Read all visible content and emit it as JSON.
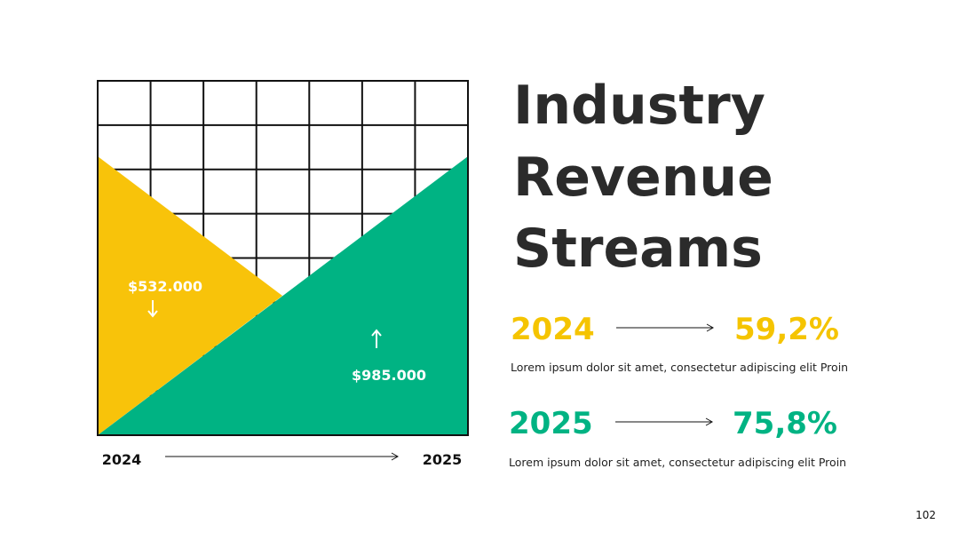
{
  "visual": {
    "left_value": "$532.000",
    "right_value": "$985.000",
    "start_label": "2024",
    "end_label": "2025"
  },
  "title": {
    "lines": [
      "Industry",
      "Revenue",
      "Streams"
    ]
  },
  "stats": [
    {
      "year": "2024",
      "percent": "59,2%",
      "description": "Lorem ipsum dolor sit amet, consectetur adipiscing elit Proin"
    },
    {
      "year": "2025",
      "percent": "75,8%",
      "description": "Lorem ipsum dolor sit amet, consectetur adipiscing elit Proin"
    }
  ],
  "page_number": "102"
}
